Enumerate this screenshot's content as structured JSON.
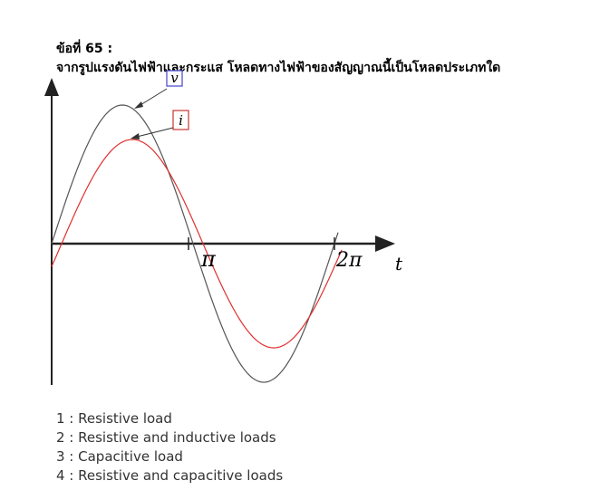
{
  "question": {
    "number": "ข้อที่ 65 :",
    "text": "จากรูปแรงดันไฟฟ้าและกระแส โหลดทางไฟฟ้าของสัญญาณนี้เป็นโหลดประเภทใด"
  },
  "figure": {
    "voltage_label": "v",
    "current_label": "i",
    "tick_pi": "π",
    "tick_2pi": "2π",
    "axis_label_t": "t",
    "colors": {
      "voltage": "#555555",
      "current": "#e03030",
      "axis": "#222222",
      "voltage_box": "#4444cc",
      "current_box": "#cc3333"
    }
  },
  "choices": [
    "1 : Resistive load",
    "2 : Resistive and inductive loads",
    "3 : Capacitive load",
    "4 : Resistive and capacitive loads"
  ]
}
